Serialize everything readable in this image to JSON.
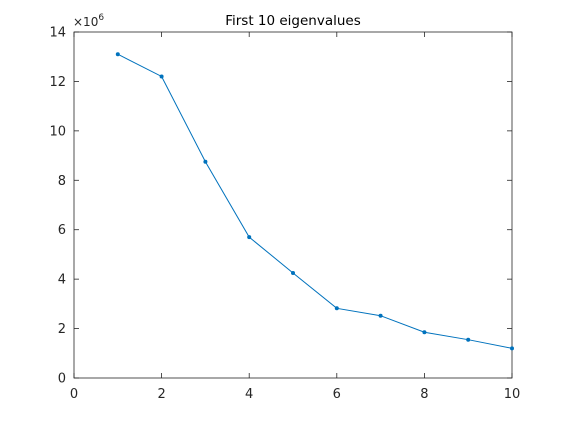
{
  "chart_data": {
    "type": "line",
    "title": "First 10 eigenvalues",
    "xlabel": "",
    "ylabel": "",
    "xlim": [
      0,
      10
    ],
    "ylim": [
      0,
      14
    ],
    "y_exponent": {
      "base": "×10",
      "power": "6"
    },
    "x_ticks": [
      0,
      2,
      4,
      6,
      8,
      10
    ],
    "y_ticks": [
      0,
      2,
      4,
      6,
      8,
      10,
      12,
      14
    ],
    "x": [
      1,
      2,
      3,
      4,
      5,
      6,
      7,
      8,
      9,
      10
    ],
    "y": [
      13.1,
      12.2,
      8.75,
      5.7,
      4.25,
      2.82,
      2.52,
      1.85,
      1.55,
      1.2
    ],
    "grid": false,
    "line_color": "#0072BD",
    "axis_color": "#262626"
  }
}
